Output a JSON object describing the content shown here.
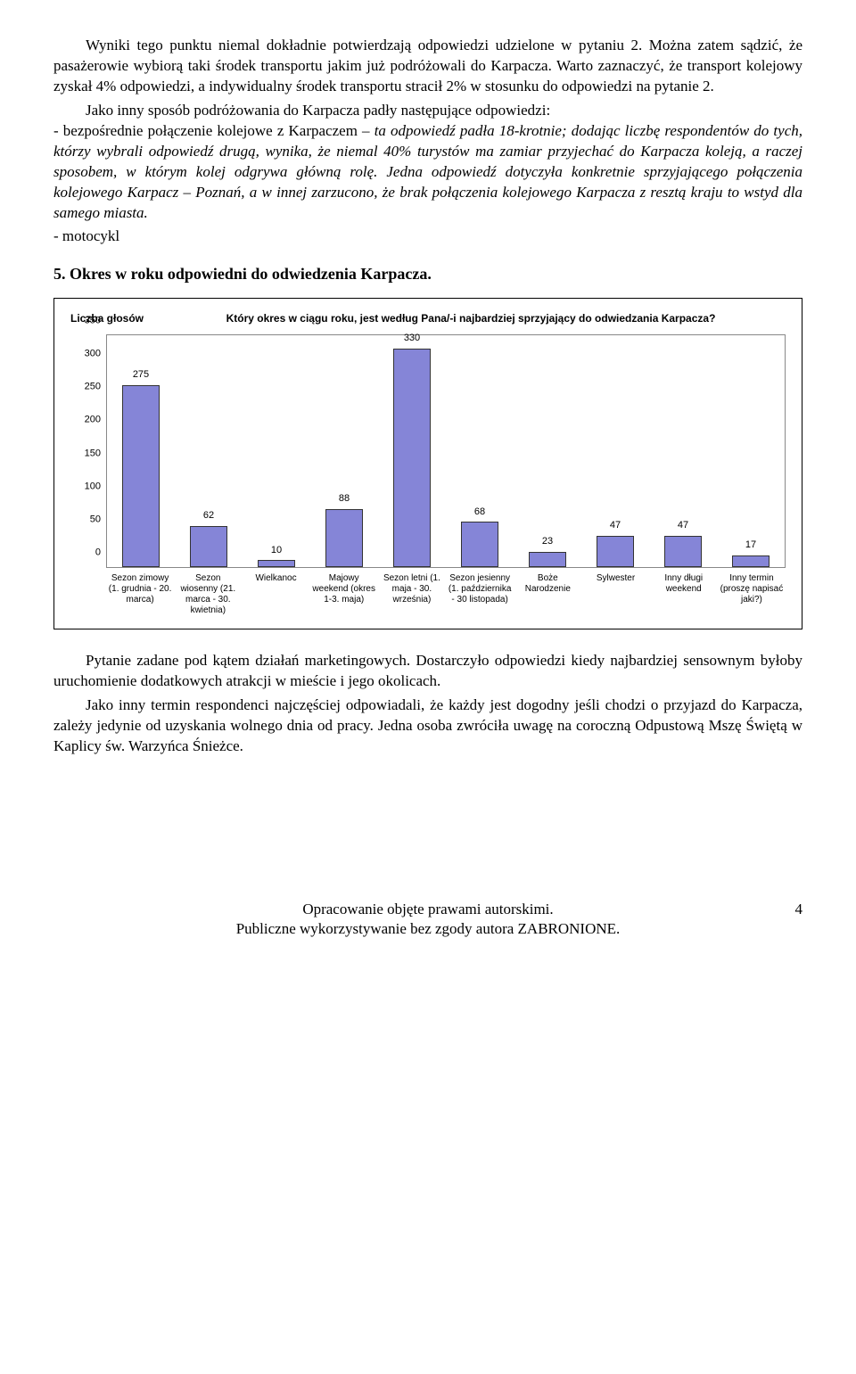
{
  "p1": "Wyniki tego punktu niemal dokładnie potwierdzają odpowiedzi udzielone w pytaniu 2. Można zatem sądzić, że pasażerowie wybiorą taki środek transportu jakim już podróżowali do Karpacza. Warto zaznaczyć, że transport kolejowy zyskał 4% odpowiedzi, a indywidualny środek transportu stracił 2% w stosunku do odpowiedzi na pytanie 2.",
  "p2_lead": "Jako inny sposób podróżowania do Karpacza padły następujące odpowiedzi:",
  "p2_item_plain": "- bezpośrednie połączenie kolejowe z Karpaczem – ",
  "p2_item_italic": "ta odpowiedź padła 18-krotnie; dodając liczbę respondentów do tych, którzy wybrali odpowiedź drugą, wynika, że niemal 40% turystów ma zamiar przyjechać do Karpacza koleją, a raczej sposobem, w którym kolej odgrywa główną rolę. Jedna odpowiedź dotyczyła konkretnie sprzyjającego połączenia kolejowego Karpacz – Poznań, a w innej zarzucono, że brak połączenia kolejowego Karpacza z resztą kraju to wstyd dla samego miasta.",
  "p3": "- motocykl",
  "heading": "5. Okres w roku odpowiedni do odwiedzenia Karpacza.",
  "chart": {
    "legend_label": "Liczba głosów",
    "title": "Który okres w ciągu roku, jest według Pana/-i najbardziej sprzyjający do odwiedzania Karpacza?",
    "ymax": 350,
    "ystep": 50,
    "bar_fill": "#8585d7",
    "bar_border": "#333333",
    "categories": [
      {
        "label": "Sezon zimowy (1. grudnia - 20. marca)",
        "value": 275
      },
      {
        "label": "Sezon wiosenny (21. marca - 30. kwietnia)",
        "value": 62
      },
      {
        "label": "Wielkanoc",
        "value": 10
      },
      {
        "label": "Majowy weekend (okres 1-3. maja)",
        "value": 88
      },
      {
        "label": "Sezon letni (1. maja - 30. września)",
        "value": 330
      },
      {
        "label": "Sezon jesienny (1. października - 30 listopada)",
        "value": 68
      },
      {
        "label": "Boże Narodzenie",
        "value": 23
      },
      {
        "label": "Sylwester",
        "value": 47
      },
      {
        "label": "Inny długi weekend",
        "value": 47
      },
      {
        "label": "Inny termin (proszę napisać jaki?)",
        "value": 17
      }
    ]
  },
  "p4": "Pytanie zadane pod kątem działań marketingowych. Dostarczyło odpowiedzi kiedy najbardziej sensownym byłoby uruchomienie dodatkowych atrakcji w mieście i jego okolicach.",
  "p5": "Jako inny termin respondenci najczęściej odpowiadali, że każdy jest dogodny jeśli chodzi o przyjazd do Karpacza, zależy jedynie od uzyskania wolnego dnia od pracy. Jedna osoba zwróciła uwagę na coroczną Odpustową Mszę Świętą w Kaplicy św. Warzyńca Śnieżce.",
  "footer1": "Opracowanie objęte prawami autorskimi.",
  "footer2": "Publiczne wykorzystywanie bez zgody autora ZABRONIONE.",
  "page": "4"
}
